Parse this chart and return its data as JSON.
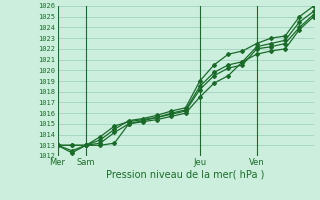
{
  "title": "Pression niveau de la mer( hPa )",
  "ylim": [
    1012,
    1026
  ],
  "yticks": [
    1012,
    1013,
    1014,
    1015,
    1016,
    1017,
    1018,
    1019,
    1020,
    1021,
    1022,
    1023,
    1024,
    1025,
    1026
  ],
  "xtick_labels": [
    "Mer",
    "Sam",
    "Jeu",
    "Ven"
  ],
  "xtick_positions": [
    0,
    12,
    60,
    84
  ],
  "vline_positions": [
    0,
    12,
    60,
    84
  ],
  "background_color": "#cceedd",
  "grid_color": "#99ccbb",
  "line_color": "#1a6b2a",
  "xlim": [
    0,
    108
  ],
  "series": [
    {
      "x": [
        0,
        6,
        12,
        18,
        24,
        30,
        36,
        42,
        48,
        54,
        60,
        66,
        72,
        78,
        84,
        90,
        96,
        102,
        108
      ],
      "y": [
        1013.0,
        1013.0,
        1013.0,
        1013.5,
        1014.5,
        1015.3,
        1015.5,
        1015.8,
        1016.2,
        1016.5,
        1019.0,
        1020.5,
        1021.5,
        1021.8,
        1022.5,
        1023.0,
        1023.2,
        1025.0,
        1026.0
      ]
    },
    {
      "x": [
        0,
        6,
        12,
        18,
        24,
        30,
        36,
        42,
        48,
        54,
        60,
        66,
        72,
        78,
        84,
        90,
        96,
        102,
        108
      ],
      "y": [
        1013.0,
        1013.0,
        1013.0,
        1013.2,
        1014.2,
        1015.0,
        1015.3,
        1015.6,
        1016.0,
        1016.3,
        1018.5,
        1019.8,
        1020.5,
        1020.8,
        1022.2,
        1022.5,
        1022.8,
        1024.5,
        1025.5
      ]
    },
    {
      "x": [
        0,
        6,
        12,
        18,
        24,
        30,
        36,
        42,
        48,
        54,
        60,
        66,
        72,
        78,
        84,
        90,
        96,
        102,
        108
      ],
      "y": [
        1013.0,
        1012.5,
        1013.0,
        1013.8,
        1014.8,
        1015.2,
        1015.4,
        1015.6,
        1015.9,
        1016.2,
        1018.2,
        1019.5,
        1020.2,
        1020.5,
        1022.0,
        1022.2,
        1022.5,
        1024.0,
        1025.2
      ]
    },
    {
      "x": [
        0,
        6,
        12,
        18,
        24,
        30,
        36,
        42,
        48,
        54,
        60,
        66,
        72,
        78,
        84,
        90,
        96,
        102,
        108
      ],
      "y": [
        1013.0,
        1012.3,
        1013.0,
        1013.0,
        1013.2,
        1015.0,
        1015.2,
        1015.4,
        1015.7,
        1016.0,
        1017.5,
        1018.8,
        1019.5,
        1020.8,
        1021.5,
        1021.8,
        1022.0,
        1023.8,
        1025.0
      ]
    }
  ]
}
